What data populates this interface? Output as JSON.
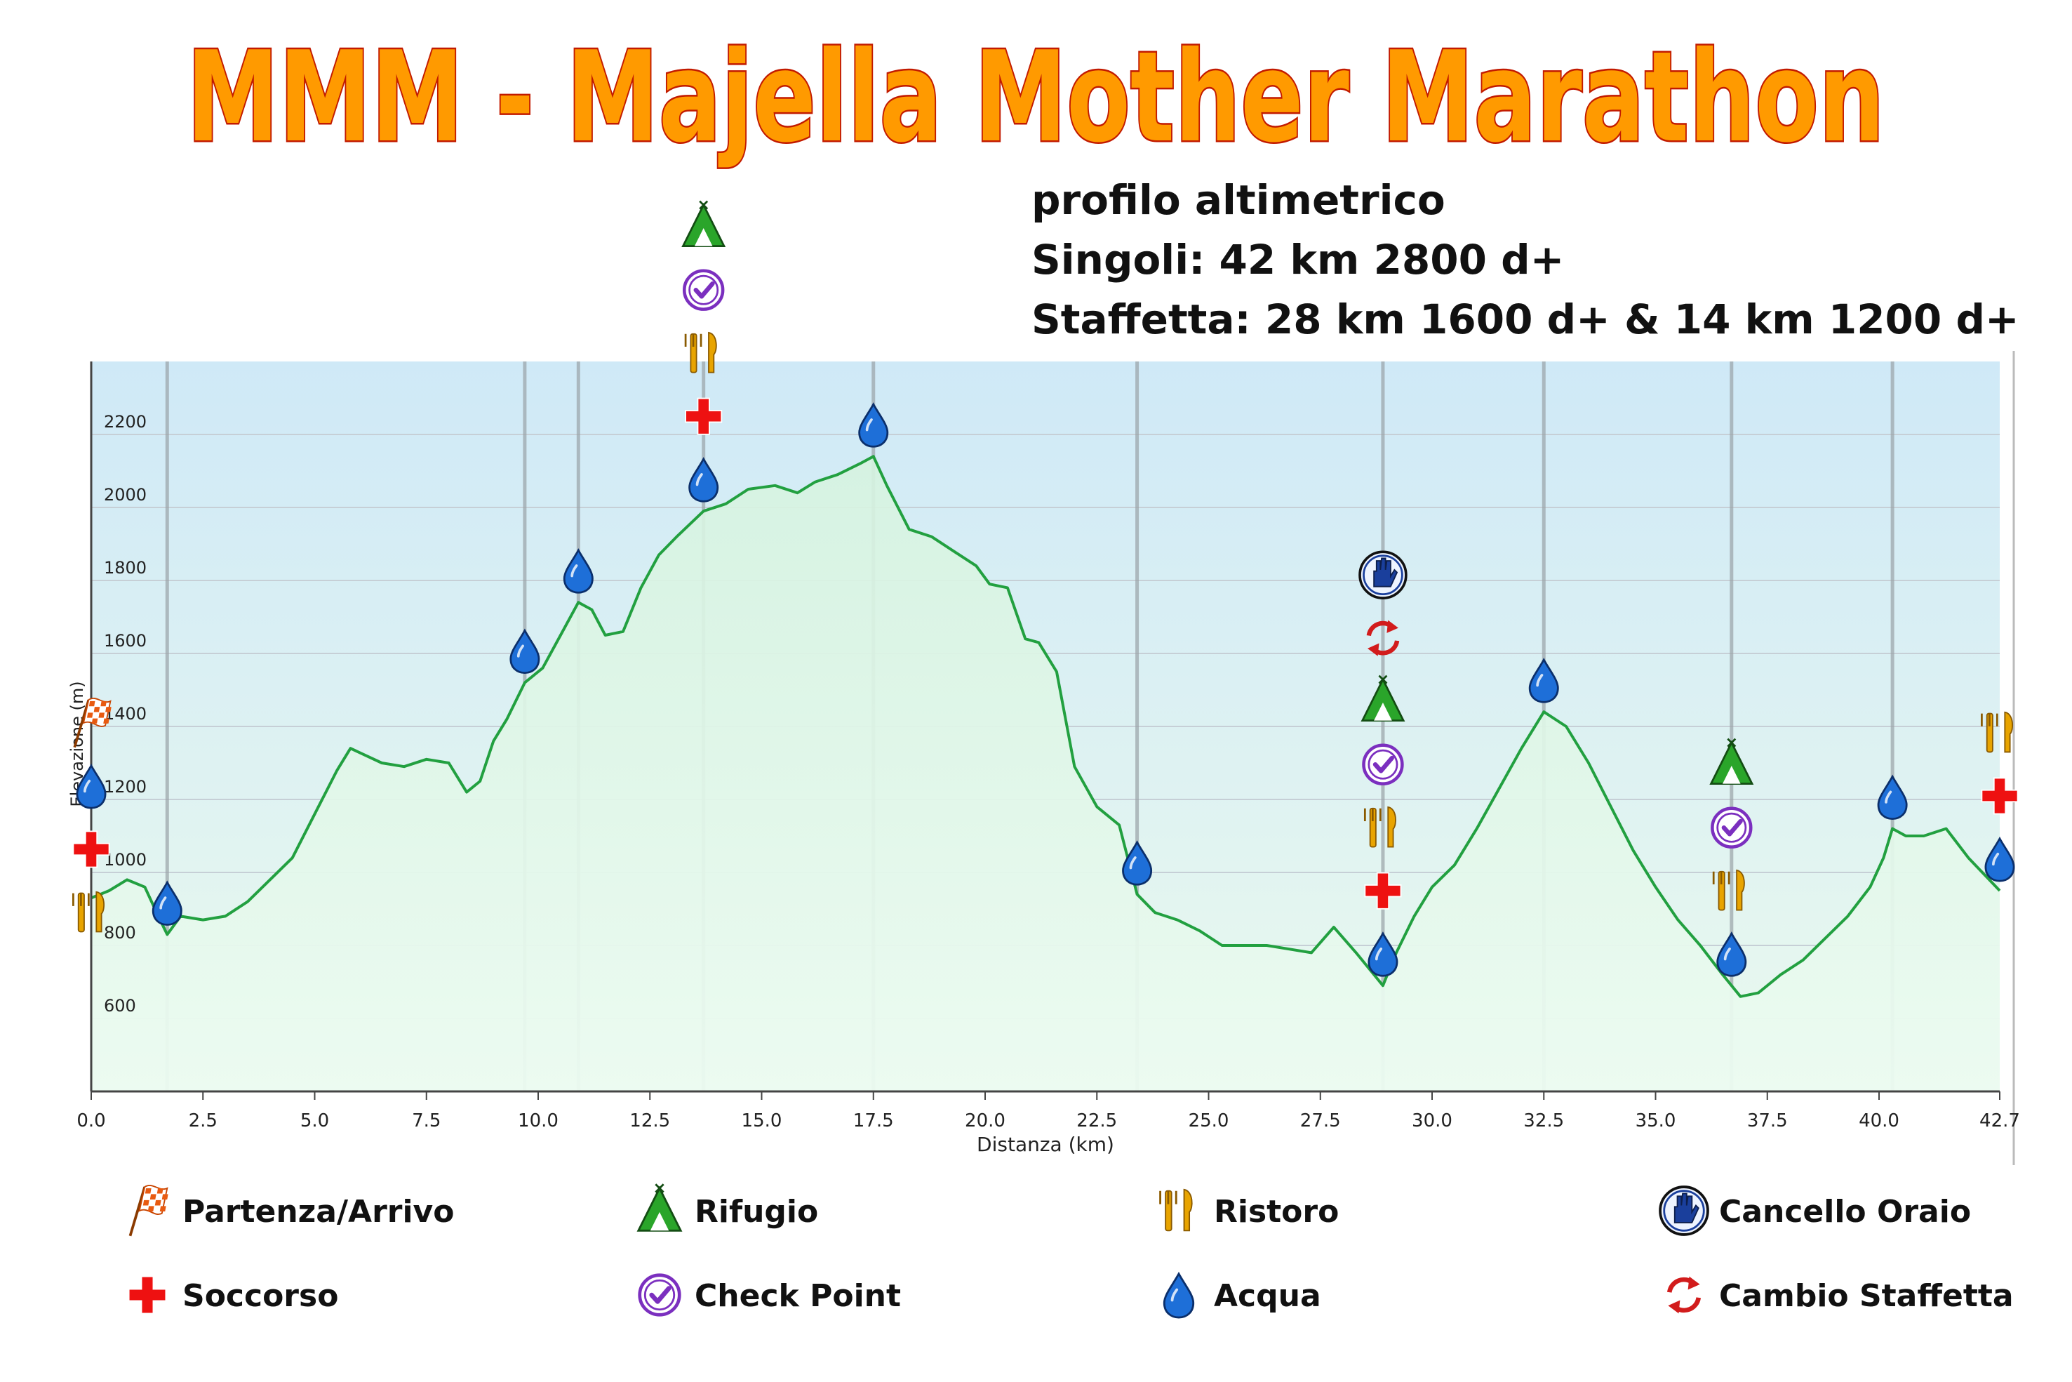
{
  "title": "MMM - Majella Mother Marathon",
  "subtitle_lines": [
    "profilo altimetrico",
    "Singoli: 42 km 2800 d+",
    "Staffetta: 28 km 1600 d+  &  14 km 1200 d+"
  ],
  "colors": {
    "title_fill": "#ff9a00",
    "title_stroke": "#c21a00",
    "profile_line": "#22a040",
    "plot_bg_top": "#cfe9f7",
    "plot_bg_bottom": "#eaf9ee",
    "water": "#1e6fd8",
    "rescue": "#ee1111",
    "checkpoint": "#7b2fbf",
    "refuge": "#2aa52a",
    "food": "#e8a400",
    "gate": "#1a3f9c",
    "relay": "#d21c1c"
  },
  "chart_data": {
    "type": "area",
    "xlabel": "Distanza  (km)",
    "ylabel": "Elevazione (m)",
    "xlim": [
      0,
      42.7
    ],
    "ylim": [
      400,
      2400
    ],
    "x_ticks": [
      0.0,
      2.5,
      5.0,
      7.5,
      10.0,
      12.5,
      15.0,
      17.5,
      20.0,
      22.5,
      25.0,
      27.5,
      30.0,
      32.5,
      35.0,
      37.5,
      40.0,
      42.7
    ],
    "x_tick_labels": [
      "0.0",
      "2.5",
      "5.0",
      "7.5",
      "10.0",
      "12.5",
      "15.0",
      "17.5",
      "20.0",
      "22.5",
      "25.0",
      "27.5",
      "30.0",
      "32.5",
      "35.0",
      "37.5",
      "40.0",
      "42.7"
    ],
    "y_ticks": [
      600,
      800,
      1000,
      1200,
      1400,
      1600,
      1800,
      2000,
      2200
    ],
    "y_tick_labels": [
      "600",
      "800",
      "1000",
      "1200",
      "1400",
      "1600",
      "1800",
      "2000",
      "2200"
    ],
    "grid": true,
    "vertical_markers_km": [
      1.7,
      9.7,
      10.9,
      13.7,
      17.5,
      23.4,
      28.9,
      32.5,
      36.7,
      40.3
    ],
    "series": [
      {
        "x": [
          0.0,
          0.4,
          0.8,
          1.2,
          1.5,
          1.7,
          2.0,
          2.5,
          3.0,
          3.5,
          4.0,
          4.5,
          5.0,
          5.5,
          5.8,
          6.5,
          7.0,
          7.5,
          8.0,
          8.4,
          8.7,
          9.0,
          9.3,
          9.7,
          10.1,
          10.5,
          10.9,
          11.2,
          11.5,
          11.9,
          12.3,
          12.7,
          13.1,
          13.7,
          14.2,
          14.7,
          15.3,
          15.8,
          16.2,
          16.7,
          17.2,
          17.5,
          17.8,
          18.3,
          18.8,
          19.3,
          19.8,
          20.1,
          20.5,
          20.9,
          21.2,
          21.6,
          22.0,
          22.5,
          23.0,
          23.4,
          23.8,
          24.3,
          24.8,
          25.3,
          25.8,
          26.3,
          26.8,
          27.3,
          27.8,
          28.3,
          28.7,
          28.9,
          29.2,
          29.6,
          30.0,
          30.5,
          31.0,
          31.5,
          32.0,
          32.5,
          33.0,
          33.5,
          34.0,
          34.5,
          35.0,
          35.5,
          36.0,
          36.5,
          36.9,
          37.3,
          37.8,
          38.3,
          38.8,
          39.3,
          39.8,
          40.1,
          40.3,
          40.6,
          41.0,
          41.5,
          42.0,
          42.7
        ],
        "y": [
          930,
          950,
          980,
          960,
          880,
          830,
          880,
          870,
          880,
          920,
          980,
          1040,
          1160,
          1280,
          1340,
          1300,
          1290,
          1310,
          1300,
          1220,
          1250,
          1360,
          1420,
          1520,
          1560,
          1650,
          1740,
          1720,
          1650,
          1660,
          1780,
          1870,
          1920,
          1990,
          2010,
          2050,
          2060,
          2040,
          2070,
          2090,
          2120,
          2140,
          2060,
          1940,
          1920,
          1880,
          1840,
          1790,
          1780,
          1640,
          1630,
          1550,
          1290,
          1180,
          1130,
          940,
          890,
          870,
          840,
          800,
          800,
          800,
          790,
          780,
          850,
          780,
          720,
          690,
          780,
          880,
          960,
          1020,
          1120,
          1230,
          1340,
          1440,
          1400,
          1300,
          1180,
          1060,
          960,
          870,
          800,
          720,
          660,
          670,
          720,
          760,
          820,
          880,
          960,
          1040,
          1120,
          1100,
          1100,
          1120,
          1040,
          950
        ]
      }
    ],
    "waypoints": [
      {
        "km": 0.0,
        "icons": [
          "start-flag",
          "water",
          "rescue",
          "food"
        ]
      },
      {
        "km": 1.7,
        "icons": [
          "water"
        ]
      },
      {
        "km": 9.7,
        "icons": [
          "water"
        ]
      },
      {
        "km": 10.9,
        "icons": [
          "water"
        ]
      },
      {
        "km": 13.7,
        "icons": [
          "refuge",
          "checkpoint",
          "food",
          "rescue",
          "water"
        ]
      },
      {
        "km": 17.5,
        "icons": [
          "water"
        ]
      },
      {
        "km": 23.4,
        "icons": [
          "water"
        ]
      },
      {
        "km": 28.9,
        "icons": [
          "gate",
          "relay",
          "refuge",
          "checkpoint",
          "food",
          "rescue",
          "water"
        ]
      },
      {
        "km": 32.5,
        "icons": [
          "water"
        ]
      },
      {
        "km": 36.7,
        "icons": [
          "refuge",
          "checkpoint",
          "food",
          "water"
        ]
      },
      {
        "km": 40.3,
        "icons": [
          "water"
        ]
      },
      {
        "km": 42.7,
        "icons": [
          "food",
          "rescue",
          "water"
        ]
      }
    ]
  },
  "legend": [
    {
      "icon": "start-flag",
      "label": "Partenza/Arrivo"
    },
    {
      "icon": "refuge",
      "label": "Rifugio"
    },
    {
      "icon": "food",
      "label": "Ristoro"
    },
    {
      "icon": "gate",
      "label": "Cancello Oraio"
    },
    {
      "icon": "rescue",
      "label": "Soccorso"
    },
    {
      "icon": "checkpoint",
      "label": "Check Point"
    },
    {
      "icon": "water",
      "label": "Acqua"
    },
    {
      "icon": "relay",
      "label": "Cambio Staffetta"
    }
  ]
}
